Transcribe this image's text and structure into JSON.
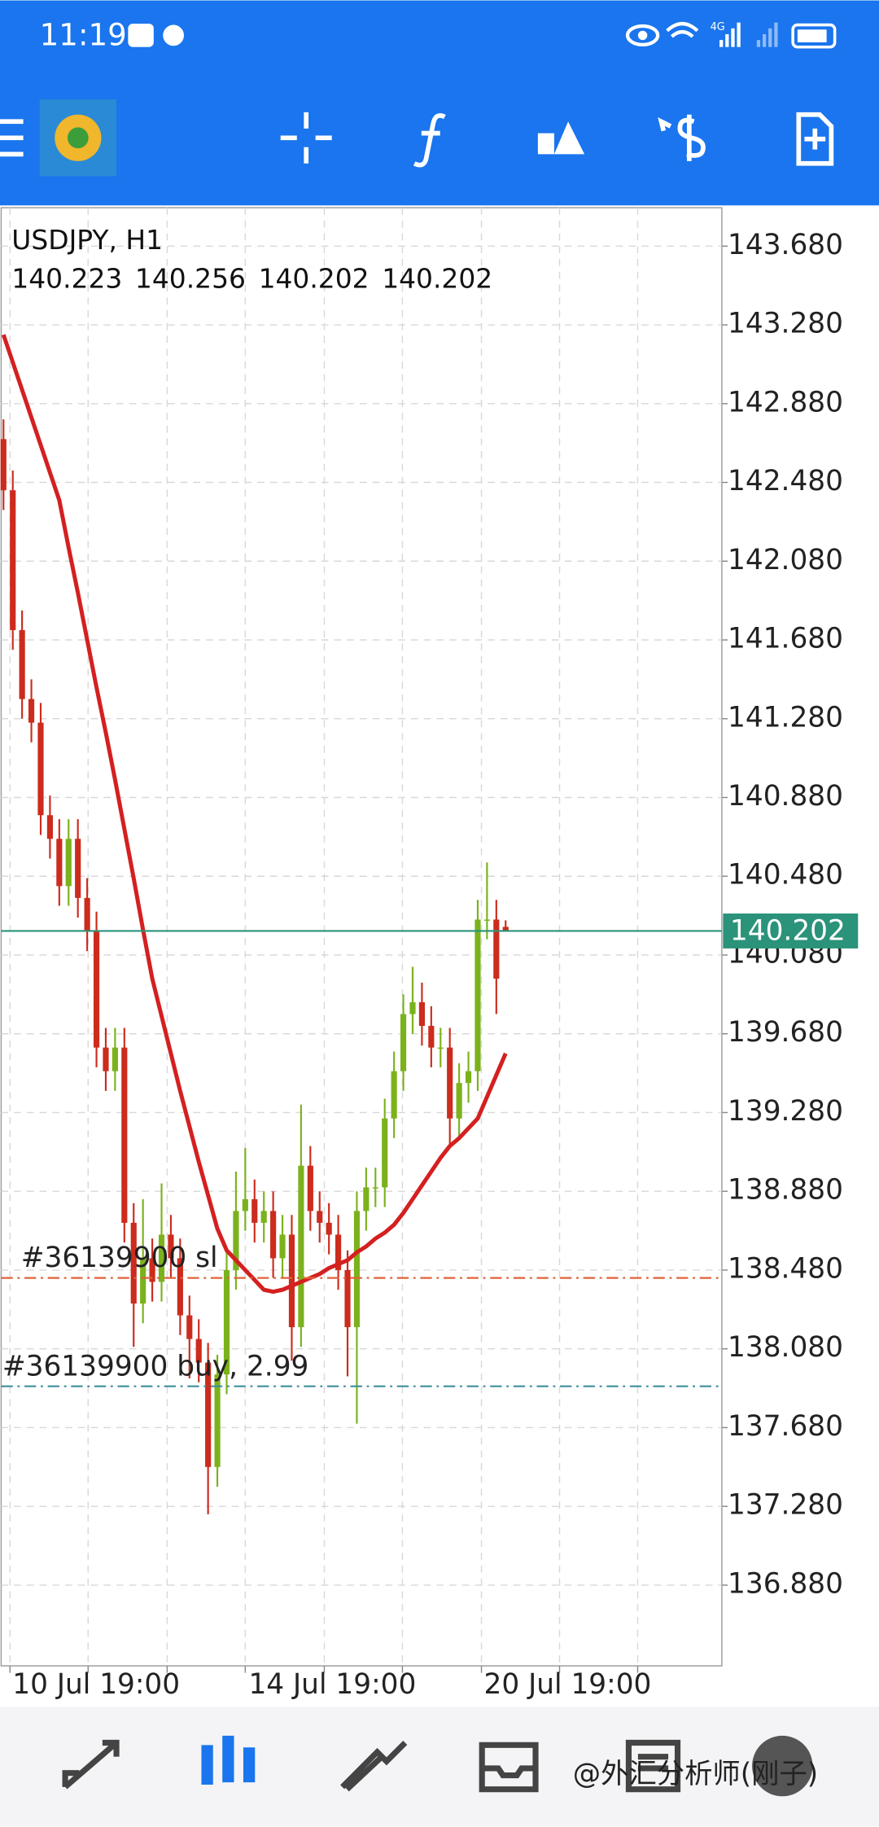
{
  "status_bar": {
    "time": "11:19",
    "network": "4G"
  },
  "chart_data": {
    "type": "candlestick",
    "title": "USDJPY, H1",
    "open": [
      142.7,
      142.44,
      141.73,
      141.38,
      141.26,
      140.79,
      140.67,
      140.43,
      140.67,
      140.37,
      140.2,
      139.61,
      139.49,
      139.61,
      138.72,
      138.31,
      138.54,
      138.42,
      138.66,
      138.54,
      138.25,
      138.13,
      138.01,
      137.48,
      137.95,
      138.48,
      138.78,
      138.84,
      138.72,
      138.78,
      138.54,
      138.66,
      138.19,
      139.01,
      138.78,
      138.72,
      138.66,
      138.48,
      138.19,
      138.78,
      138.9,
      138.9,
      139.25,
      139.49,
      139.78,
      139.84,
      139.72,
      139.61,
      139.61,
      139.25,
      139.43,
      139.49,
      140.26,
      140.26,
      140.223
    ],
    "high": [
      142.8,
      142.54,
      141.83,
      141.48,
      141.36,
      140.89,
      140.77,
      140.77,
      140.77,
      140.47,
      140.3,
      139.71,
      139.71,
      139.71,
      138.82,
      138.84,
      138.64,
      138.92,
      138.76,
      138.64,
      138.35,
      138.23,
      138.11,
      138.05,
      138.58,
      138.98,
      139.1,
      138.94,
      138.88,
      138.88,
      138.76,
      138.76,
      139.32,
      139.11,
      138.88,
      138.82,
      138.76,
      138.58,
      138.88,
      139.0,
      139.0,
      139.35,
      139.59,
      139.88,
      140.02,
      139.94,
      139.82,
      139.71,
      139.71,
      139.53,
      139.59,
      140.36,
      140.55,
      140.36,
      140.256
    ],
    "low": [
      142.34,
      141.63,
      141.28,
      141.16,
      140.69,
      140.57,
      140.33,
      140.33,
      140.27,
      140.1,
      139.51,
      139.39,
      139.39,
      138.62,
      138.09,
      138.21,
      138.32,
      138.32,
      138.44,
      138.15,
      137.93,
      137.91,
      137.24,
      137.38,
      137.85,
      138.38,
      138.68,
      138.62,
      138.62,
      138.44,
      138.44,
      138.02,
      138.09,
      138.68,
      138.62,
      138.56,
      138.38,
      137.94,
      137.7,
      138.68,
      138.8,
      138.8,
      139.15,
      139.39,
      139.68,
      139.62,
      139.51,
      139.51,
      139.1,
      139.15,
      139.33,
      139.39,
      140.16,
      139.78,
      140.202
    ],
    "close": [
      142.44,
      141.73,
      141.38,
      141.26,
      140.79,
      140.67,
      140.43,
      140.67,
      140.37,
      140.2,
      139.61,
      139.49,
      139.61,
      138.72,
      138.31,
      138.54,
      138.42,
      138.66,
      138.54,
      138.25,
      138.13,
      138.01,
      137.48,
      137.95,
      138.48,
      138.78,
      138.84,
      138.72,
      138.78,
      138.54,
      138.66,
      138.19,
      139.01,
      138.78,
      138.72,
      138.66,
      138.48,
      138.19,
      138.78,
      138.9,
      138.9,
      139.25,
      139.49,
      139.78,
      139.84,
      139.72,
      139.61,
      139.61,
      139.25,
      139.43,
      139.49,
      140.26,
      140.26,
      139.96,
      140.202
    ],
    "up_color": "#7bb21c",
    "down_color": "#cc2b1d",
    "ma": {
      "color": "#d42020",
      "values": [
        143.23,
        143.09,
        142.95,
        142.81,
        142.67,
        142.53,
        142.39,
        142.15,
        141.92,
        141.68,
        141.44,
        141.21,
        140.97,
        140.72,
        140.47,
        140.21,
        139.96,
        139.77,
        139.58,
        139.39,
        139.21,
        139.03,
        138.86,
        138.69,
        138.58,
        138.53,
        138.48,
        138.43,
        138.38,
        138.37,
        138.38,
        138.4,
        138.42,
        138.44,
        138.46,
        138.49,
        138.51,
        138.53,
        138.57,
        138.6,
        138.64,
        138.67,
        138.71,
        138.77,
        138.84,
        138.91,
        138.98,
        139.05,
        139.11,
        139.15,
        139.2,
        139.25,
        139.36,
        139.47,
        139.58
      ]
    },
    "xlim": [
      -0.25,
      77.25
    ],
    "xticks": [
      {
        "value": 0.7,
        "label": null
      },
      {
        "value": 9.1,
        "label": "10 Jul 19:00"
      },
      {
        "value": 17.6,
        "label": null
      },
      {
        "value": 26.0,
        "label": null
      },
      {
        "value": 34.5,
        "label": "14 Jul 19:00"
      },
      {
        "value": 42.9,
        "label": null
      },
      {
        "value": 51.4,
        "label": null
      },
      {
        "value": 59.8,
        "label": "20 Jul 19:00"
      },
      {
        "value": 68.2,
        "label": null
      }
    ],
    "ylim": [
      136.47,
      143.875
    ],
    "yticks": [
      {
        "value": 143.68,
        "label": "143.680"
      },
      {
        "value": 143.28,
        "label": "143.280"
      },
      {
        "value": 142.88,
        "label": "142.880"
      },
      {
        "value": 142.48,
        "label": "142.480"
      },
      {
        "value": 142.08,
        "label": "142.080"
      },
      {
        "value": 141.68,
        "label": "141.680"
      },
      {
        "value": 141.28,
        "label": "141.280"
      },
      {
        "value": 140.88,
        "label": "140.880"
      },
      {
        "value": 140.48,
        "label": "140.480"
      },
      {
        "value": 140.08,
        "label": "140.080"
      },
      {
        "value": 139.68,
        "label": "139.680"
      },
      {
        "value": 139.28,
        "label": "139.280"
      },
      {
        "value": 138.88,
        "label": "138.880"
      },
      {
        "value": 138.48,
        "label": "138.480"
      },
      {
        "value": 138.08,
        "label": "138.080"
      },
      {
        "value": 137.68,
        "label": "137.680"
      },
      {
        "value": 137.28,
        "label": "137.280"
      },
      {
        "value": 136.88,
        "label": "136.880"
      }
    ],
    "grid": true,
    "last_price": 140.202,
    "last_price_color": "#2a937a",
    "levels": [
      {
        "label": "#36139900 sl",
        "value": 138.44,
        "color": "#e0633c"
      },
      {
        "label": "#36139900 buy, 2.99",
        "value": 137.89,
        "color": "#3d8f9c"
      }
    ]
  },
  "watermark": "@外汇分析师(刚子)"
}
